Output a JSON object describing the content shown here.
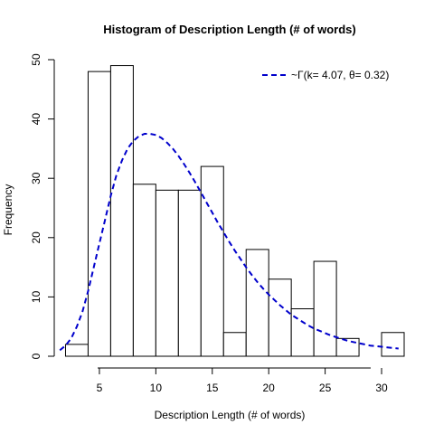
{
  "chart_data": {
    "type": "histogram",
    "title": "Histogram of Description Length (# of words)",
    "xlabel": "Description Length (# of words)",
    "ylabel": "Frequency",
    "xlim": [
      1,
      32
    ],
    "ylim": [
      0,
      50
    ],
    "x_ticks": [
      5,
      10,
      15,
      20,
      25,
      30
    ],
    "y_ticks": [
      0,
      10,
      20,
      30,
      40,
      50
    ],
    "bins": [
      {
        "start": 2,
        "end": 4,
        "count": 2
      },
      {
        "start": 4,
        "end": 6,
        "count": 48
      },
      {
        "start": 6,
        "end": 8,
        "count": 49
      },
      {
        "start": 8,
        "end": 10,
        "count": 29
      },
      {
        "start": 10,
        "end": 12,
        "count": 28
      },
      {
        "start": 12,
        "end": 14,
        "count": 28
      },
      {
        "start": 14,
        "end": 16,
        "count": 32
      },
      {
        "start": 16,
        "end": 18,
        "count": 4
      },
      {
        "start": 18,
        "end": 20,
        "count": 18
      },
      {
        "start": 20,
        "end": 22,
        "count": 13
      },
      {
        "start": 22,
        "end": 24,
        "count": 8
      },
      {
        "start": 24,
        "end": 26,
        "count": 16
      },
      {
        "start": 26,
        "end": 28,
        "count": 3
      },
      {
        "start": 28,
        "end": 30,
        "count": 0
      },
      {
        "start": 30,
        "end": 32,
        "count": 4
      }
    ],
    "curve": {
      "label": "~Γ(k= 4.07, θ= 0.32)",
      "color": "#0000cc",
      "style": "dashed",
      "points": [
        [
          1.5,
          1.0
        ],
        [
          2.0,
          1.8
        ],
        [
          2.5,
          3.0
        ],
        [
          3.0,
          5.0
        ],
        [
          3.5,
          7.5
        ],
        [
          4.0,
          11.0
        ],
        [
          4.5,
          15.0
        ],
        [
          5.0,
          19.0
        ],
        [
          5.5,
          23.0
        ],
        [
          6.0,
          27.0
        ],
        [
          6.5,
          30.5
        ],
        [
          7.0,
          33.0
        ],
        [
          7.5,
          35.0
        ],
        [
          8.0,
          36.3
        ],
        [
          8.5,
          37.1
        ],
        [
          9.0,
          37.5
        ],
        [
          9.5,
          37.5
        ],
        [
          10.0,
          37.3
        ],
        [
          10.5,
          36.8
        ],
        [
          11.0,
          36.0
        ],
        [
          11.5,
          35.0
        ],
        [
          12.0,
          33.8
        ],
        [
          12.5,
          32.4
        ],
        [
          13.0,
          30.9
        ],
        [
          13.5,
          29.3
        ],
        [
          14.0,
          27.6
        ],
        [
          14.5,
          25.9
        ],
        [
          15.0,
          24.2
        ],
        [
          15.5,
          22.5
        ],
        [
          16.0,
          20.9
        ],
        [
          16.5,
          19.3
        ],
        [
          17.0,
          17.8
        ],
        [
          17.5,
          16.4
        ],
        [
          18.0,
          15.0
        ],
        [
          18.5,
          13.7
        ],
        [
          19.0,
          12.5
        ],
        [
          19.5,
          11.4
        ],
        [
          20.0,
          10.4
        ],
        [
          20.5,
          9.5
        ],
        [
          21.0,
          8.6
        ],
        [
          21.5,
          7.8
        ],
        [
          22.0,
          7.0
        ],
        [
          22.5,
          6.4
        ],
        [
          23.0,
          5.8
        ],
        [
          23.5,
          5.2
        ],
        [
          24.0,
          4.7
        ],
        [
          24.5,
          4.3
        ],
        [
          25.0,
          3.9
        ],
        [
          25.5,
          3.5
        ],
        [
          26.0,
          3.2
        ],
        [
          26.5,
          2.9
        ],
        [
          27.0,
          2.6
        ],
        [
          27.5,
          2.4
        ],
        [
          28.0,
          2.2
        ],
        [
          28.5,
          2.0
        ],
        [
          29.0,
          1.8
        ],
        [
          29.5,
          1.7
        ],
        [
          30.0,
          1.6
        ],
        [
          30.5,
          1.5
        ],
        [
          31.0,
          1.4
        ],
        [
          31.5,
          1.3
        ]
      ]
    },
    "legend_position": "top-right",
    "grid": false
  }
}
